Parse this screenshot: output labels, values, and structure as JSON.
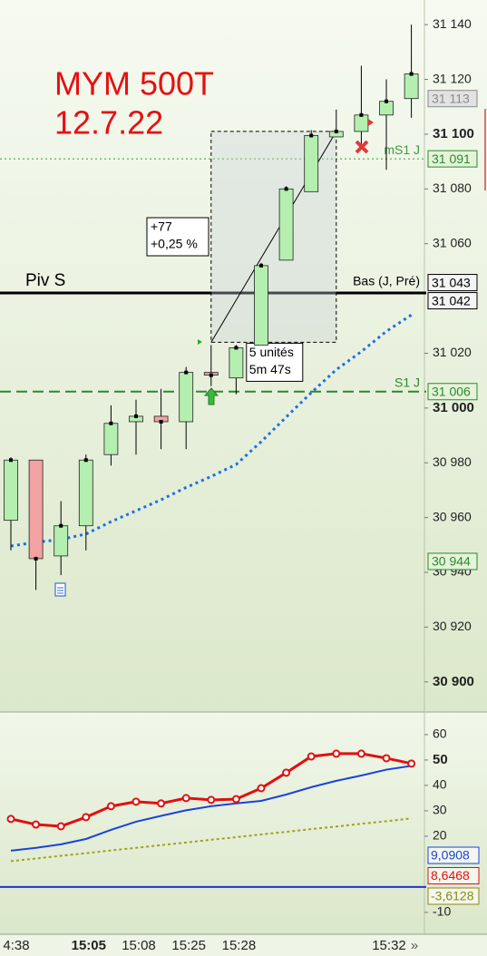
{
  "chart_data": [
    {
      "type": "candlestick",
      "title": "MYM 500T",
      "subtitle": "12.7.22",
      "categories": [
        "4:38",
        null,
        null,
        "15:05",
        null,
        "15:08",
        null,
        "15:25",
        null,
        "15:28",
        null,
        null,
        null,
        null,
        null,
        "15:32",
        null
      ],
      "open": [
        30959,
        30981,
        30946,
        30957,
        30983,
        30995,
        30997,
        30995,
        31013,
        31011,
        31023,
        31054,
        31079,
        31099,
        31101,
        31107,
        31113
      ],
      "high": [
        30982,
        30981,
        30966,
        30983,
        31001,
        31003,
        31007,
        31015,
        31023,
        31023,
        31053,
        31081,
        31101.5,
        31109,
        31125,
        31120,
        31140
      ],
      "low": [
        30948,
        30933.6,
        30939,
        30948,
        30979,
        30983,
        30985,
        30985,
        31008,
        31005,
        31023,
        31054,
        31079,
        31099,
        31096,
        31087,
        31106
      ],
      "close": [
        30981,
        30945,
        30957,
        30981,
        30994.4,
        30997,
        30995,
        31013,
        31012,
        31022,
        31052,
        31080,
        31099.5,
        31101,
        31107,
        31112,
        31122
      ],
      "up_color": "#b4efb0",
      "down_color": "#f2a2a2",
      "series": [
        {
          "color": "#1f6fe0",
          "values": [
            30949.6,
            30951,
            30952,
            30954,
            30958.5,
            30962.5,
            30966.5,
            30971,
            30975,
            30979.4,
            30987.7,
            30996.7,
            31005.6,
            31014,
            31020.6,
            31028,
            31034
          ]
        }
      ],
      "ylim": [
        30889,
        31149
      ],
      "yticks": [
        {
          "value": 31140,
          "label": "31 140"
        },
        {
          "value": 31120,
          "label": "31 120"
        },
        {
          "value": 31100,
          "label": "31 100",
          "bold": true
        },
        {
          "value": 31080,
          "label": "31 080"
        },
        {
          "value": 31060,
          "label": "31 060"
        },
        {
          "value": 31020,
          "label": "31 020"
        },
        {
          "value": 31000,
          "label": "31 000",
          "bold": true
        },
        {
          "value": 30980,
          "label": "30 980"
        },
        {
          "value": 30960,
          "label": "30 960"
        },
        {
          "value": 30940,
          "label": "30 940"
        },
        {
          "value": 30920,
          "label": "30 920"
        },
        {
          "value": 30900,
          "label": "30 900",
          "bold": true
        }
      ],
      "levels": [
        {
          "value": 31042,
          "label": "Piv S",
          "color": "#000000",
          "dash": "solid",
          "side": "left"
        },
        {
          "value": 31043,
          "label": "Bas (J, Pré)",
          "color": "#000000",
          "dash": "none",
          "side": "right"
        },
        {
          "value": 31006,
          "label": "S1 J",
          "color": "#2a8a2a",
          "dash": "dashed",
          "side": "right"
        },
        {
          "value": 31091,
          "label": "mS1 J",
          "color": "#3a9a3a",
          "dash": "dotted",
          "side": "right"
        }
      ],
      "price_boxes": [
        {
          "value": 31113,
          "label": "31 113",
          "color": "#8a8a8a",
          "fill": "#e2e2e2"
        },
        {
          "value": 31091,
          "label": "31 091",
          "color": "#2a8a2a",
          "fill": "#e4f3da"
        },
        {
          "value": 31043,
          "label": "31 043",
          "color": "#000000",
          "fill": "#f4f4f4"
        },
        {
          "value": 31042,
          "label": "31 042",
          "color": "#000000",
          "fill": "#f4f4f4"
        },
        {
          "value": 31006,
          "label": "31 006",
          "color": "#2a8a2a",
          "fill": "#e4f3da"
        },
        {
          "value": 30944,
          "label": "30 944",
          "color": "#2a8a2a",
          "fill": "#e4f3da"
        }
      ],
      "range_box": {
        "from": 8,
        "to": 13,
        "high": 31101,
        "low": 31024,
        "change": "+77",
        "change_pct": "+0,25 %",
        "bars": "5 unités",
        "duration": "5m 47s"
      }
    },
    {
      "type": "line",
      "series": [
        {
          "color": "#e01010",
          "values": [
            26.8,
            24.6,
            23.9,
            27.5,
            31.8,
            33.6,
            32.9,
            35,
            34.3,
            34.6,
            38.9,
            45,
            51.4,
            52.5,
            52.5,
            50.7,
            48.6
          ]
        },
        {
          "color": "#1a44d8",
          "values": [
            14.3,
            15.4,
            16.8,
            18.9,
            22.5,
            25.7,
            28,
            30.2,
            31.8,
            32.9,
            33.9,
            36.4,
            39.3,
            41.8,
            43.9,
            46.2,
            47.7
          ]
        },
        {
          "color": "#a0a020",
          "values": [
            10.2,
            11.2,
            12.3,
            13.3,
            14.4,
            15.4,
            16.5,
            17.5,
            18.6,
            19.6,
            20.7,
            21.7,
            22.8,
            23.8,
            24.9,
            25.9,
            27
          ]
        }
      ],
      "ylim": [
        -18.6,
        68.9
      ],
      "yticks": [
        60,
        {
          "value": 50,
          "label": "50",
          "bold": true
        },
        40,
        30,
        20,
        -10
      ],
      "levels": [
        {
          "value": 0,
          "color": "#2233cc"
        }
      ],
      "value_boxes": [
        {
          "label": "9,0908",
          "color": "#1a44d8"
        },
        {
          "label": "8,6468",
          "color": "#e01010"
        },
        {
          "label": "-3,6128",
          "color": "#8a8a10"
        }
      ]
    }
  ]
}
